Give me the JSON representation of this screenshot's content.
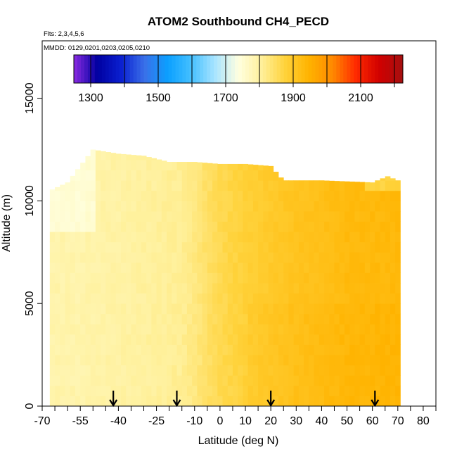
{
  "chart_data": {
    "type": "heatmap",
    "title": "ATOM2 Southbound CH4_PECD",
    "flights_note": "Flts: 2,3,4,5,6",
    "dates_note": "MMDD: 0129,0201,0203,0205,0210",
    "xlabel": "Latitude (deg N)",
    "ylabel": "Altitude (m)",
    "xlim": [
      -70,
      85
    ],
    "ylim": [
      0,
      17800
    ],
    "x_major_ticks": [
      -70,
      -55,
      -40,
      -25,
      -10,
      0,
      10,
      20,
      30,
      40,
      50,
      60,
      70,
      80
    ],
    "x_minor_ticks": [
      -65,
      -60,
      -50,
      -45,
      -35,
      -30,
      -20,
      -15,
      -5,
      5,
      15,
      25,
      35,
      45,
      55,
      65,
      75,
      85
    ],
    "y_ticks": [
      0,
      5000,
      10000,
      15000
    ],
    "colorbar": {
      "ticks": [
        1300,
        1500,
        1700,
        1900,
        2100
      ],
      "range": [
        1250,
        2225
      ],
      "colors": [
        "#8a2be2",
        "#0000a0",
        "#0a1fd0",
        "#3a6fe8",
        "#0ba0ff",
        "#45c0ff",
        "#a8e4ff",
        "#ffffe0",
        "#fff09a",
        "#ffd23a",
        "#ffb300",
        "#ff8a00",
        "#ff2a00",
        "#d00000",
        "#a51010"
      ]
    },
    "flight_arrows_lat": [
      -42,
      -17,
      20,
      61
    ],
    "grid": false,
    "field": {
      "lat_min": -67,
      "lat_max": 71,
      "boundary_alt": [
        [
          -67,
          10500
        ],
        [
          -60,
          10900
        ],
        [
          -55,
          11700
        ],
        [
          -50,
          12500
        ],
        [
          -40,
          12300
        ],
        [
          -30,
          12200
        ],
        [
          -20,
          11900
        ],
        [
          -10,
          11900
        ],
        [
          0,
          11800
        ],
        [
          10,
          11800
        ],
        [
          20,
          11700
        ],
        [
          25,
          11000
        ],
        [
          40,
          11000
        ],
        [
          60,
          10900
        ],
        [
          66,
          11200
        ],
        [
          70,
          11000
        ],
        [
          71,
          10800
        ]
      ],
      "lat_profile": [
        [
          -67,
          1790
        ],
        [
          -55,
          1790
        ],
        [
          -45,
          1795
        ],
        [
          -35,
          1800
        ],
        [
          -25,
          1805
        ],
        [
          -15,
          1812
        ],
        [
          -10,
          1825
        ],
        [
          -5,
          1845
        ],
        [
          0,
          1860
        ],
        [
          5,
          1870
        ],
        [
          10,
          1880
        ],
        [
          15,
          1888
        ],
        [
          20,
          1895
        ],
        [
          30,
          1910
        ],
        [
          40,
          1918
        ],
        [
          50,
          1930
        ],
        [
          60,
          1932
        ],
        [
          71,
          1935
        ]
      ]
    }
  }
}
